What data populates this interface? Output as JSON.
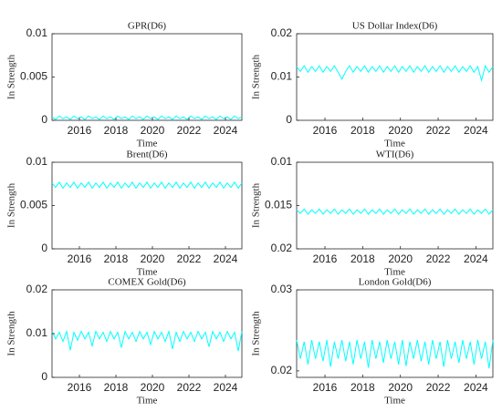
{
  "chart_data": [
    {
      "type": "line",
      "title": "GPR(D6)",
      "x_label": "Time",
      "y_label": "In Strength",
      "xlim": [
        2014.5,
        2024.9
      ],
      "xticks": [
        2016,
        2018,
        2020,
        2022,
        2024
      ],
      "ylim": [
        0,
        0.01
      ],
      "yticks": [
        0,
        0.005,
        0.01
      ],
      "series": [
        {
          "name": "GPR(D6)",
          "color": "#00ffff",
          "x": [
            2014.5,
            2014.7,
            2014.9,
            2015.1,
            2015.3,
            2015.5,
            2015.7,
            2015.9,
            2016.1,
            2016.3,
            2016.5,
            2016.7,
            2016.9,
            2017.1,
            2017.3,
            2017.5,
            2017.7,
            2017.9,
            2018.1,
            2018.3,
            2018.5,
            2018.7,
            2018.9,
            2019.1,
            2019.3,
            2019.5,
            2019.7,
            2019.9,
            2020.1,
            2020.3,
            2020.5,
            2020.7,
            2020.9,
            2021.1,
            2021.3,
            2021.5,
            2021.7,
            2021.9,
            2022.1,
            2022.3,
            2022.5,
            2022.7,
            2022.9,
            2023.1,
            2023.3,
            2023.5,
            2023.7,
            2023.9,
            2024.1,
            2024.3,
            2024.5,
            2024.7,
            2024.9
          ],
          "values": [
            0.0004,
            0.0001,
            0.0005,
            0.0002,
            0.0004,
            0.0001,
            0.0005,
            0.0002,
            0.0004,
            0.0001,
            0.0005,
            0.0002,
            0.0004,
            0.0001,
            0.0005,
            0.0002,
            0.0004,
            0.0001,
            0.0005,
            0.0002,
            0.0004,
            0.0001,
            0.0005,
            0.0002,
            0.0004,
            0.0001,
            0.0005,
            0.0002,
            0.0004,
            0.0001,
            0.0005,
            0.0002,
            0.0004,
            0.0001,
            0.0005,
            0.0002,
            0.0004,
            0.0001,
            0.0005,
            0.0002,
            0.0004,
            0.0001,
            0.0005,
            0.0002,
            0.0004,
            0.0001,
            0.0005,
            0.0002,
            0.0004,
            0.0001,
            0.0005,
            0.0002,
            0.0004
          ]
        }
      ]
    },
    {
      "type": "line",
      "title": "US Dollar Index(D6)",
      "x_label": "Time",
      "y_label": "In Strength",
      "xlim": [
        2014.5,
        2024.9
      ],
      "xticks": [
        2016,
        2018,
        2020,
        2022,
        2024
      ],
      "ylim": [
        0,
        0.02
      ],
      "yticks": [
        0,
        0.01,
        0.02
      ],
      "series": [
        {
          "name": "US Dollar Index(D6)",
          "color": "#00ffff",
          "x": [
            2014.5,
            2014.7,
            2014.9,
            2015.1,
            2015.3,
            2015.5,
            2015.7,
            2015.9,
            2016.1,
            2016.3,
            2016.5,
            2016.7,
            2016.9,
            2017.1,
            2017.3,
            2017.5,
            2017.7,
            2017.9,
            2018.1,
            2018.3,
            2018.5,
            2018.7,
            2018.9,
            2019.1,
            2019.3,
            2019.5,
            2019.7,
            2019.9,
            2020.1,
            2020.3,
            2020.5,
            2020.7,
            2020.9,
            2021.1,
            2021.3,
            2021.5,
            2021.7,
            2021.9,
            2022.1,
            2022.3,
            2022.5,
            2022.7,
            2022.9,
            2023.1,
            2023.3,
            2023.5,
            2023.7,
            2023.9,
            2024.1,
            2024.3,
            2024.5,
            2024.7,
            2024.9
          ],
          "values": [
            0.0124,
            0.0113,
            0.0126,
            0.0111,
            0.0124,
            0.0113,
            0.0126,
            0.0111,
            0.0124,
            0.0113,
            0.0126,
            0.0111,
            0.0095,
            0.0113,
            0.0126,
            0.0111,
            0.0124,
            0.0113,
            0.0126,
            0.0111,
            0.0124,
            0.0113,
            0.0126,
            0.0111,
            0.0124,
            0.0113,
            0.0126,
            0.0111,
            0.0124,
            0.0113,
            0.0126,
            0.0111,
            0.0124,
            0.0113,
            0.0126,
            0.0111,
            0.0124,
            0.0113,
            0.0126,
            0.0111,
            0.0124,
            0.0113,
            0.0126,
            0.0111,
            0.0124,
            0.0113,
            0.0126,
            0.0111,
            0.0124,
            0.0092,
            0.0126,
            0.0111,
            0.0124
          ]
        }
      ]
    },
    {
      "type": "line",
      "title": "Brent(D6)",
      "x_label": "Time",
      "y_label": "In Strength",
      "xlim": [
        2014.5,
        2024.9
      ],
      "xticks": [
        2016,
        2018,
        2020,
        2022,
        2024
      ],
      "ylim": [
        0,
        0.01
      ],
      "yticks": [
        0,
        0.005,
        0.01
      ],
      "series": [
        {
          "name": "Brent(D6)",
          "color": "#00ffff",
          "x": [
            2014.5,
            2014.7,
            2014.9,
            2015.1,
            2015.3,
            2015.5,
            2015.7,
            2015.9,
            2016.1,
            2016.3,
            2016.5,
            2016.7,
            2016.9,
            2017.1,
            2017.3,
            2017.5,
            2017.7,
            2017.9,
            2018.1,
            2018.3,
            2018.5,
            2018.7,
            2018.9,
            2019.1,
            2019.3,
            2019.5,
            2019.7,
            2019.9,
            2020.1,
            2020.3,
            2020.5,
            2020.7,
            2020.9,
            2021.1,
            2021.3,
            2021.5,
            2021.7,
            2021.9,
            2022.1,
            2022.3,
            2022.5,
            2022.7,
            2022.9,
            2023.1,
            2023.3,
            2023.5,
            2023.7,
            2023.9,
            2024.1,
            2024.3,
            2024.5,
            2024.7,
            2024.9
          ],
          "values": [
            0.0076,
            0.0071,
            0.0077,
            0.007,
            0.0076,
            0.0071,
            0.0077,
            0.007,
            0.0076,
            0.0071,
            0.0077,
            0.007,
            0.0076,
            0.0071,
            0.0077,
            0.007,
            0.0076,
            0.0071,
            0.0077,
            0.007,
            0.0076,
            0.0071,
            0.0077,
            0.007,
            0.0076,
            0.0071,
            0.0077,
            0.007,
            0.0076,
            0.0071,
            0.0077,
            0.007,
            0.0076,
            0.0071,
            0.0077,
            0.007,
            0.0076,
            0.0071,
            0.0077,
            0.007,
            0.0076,
            0.0071,
            0.0077,
            0.007,
            0.0076,
            0.0071,
            0.0077,
            0.007,
            0.0076,
            0.0071,
            0.0077,
            0.007,
            0.0076
          ]
        }
      ]
    },
    {
      "type": "line",
      "title": "WTI(D6)",
      "x_label": "Time",
      "y_label": "In Strength",
      "xlim": [
        2014.5,
        2024.9
      ],
      "xticks": [
        2016,
        2018,
        2020,
        2022,
        2024
      ],
      "ylim": [
        0.02,
        0.01
      ],
      "yticks": [
        0.02,
        0.015,
        0.01
      ],
      "series": [
        {
          "name": "WTI(D6)",
          "color": "#00ffff",
          "x": [
            2014.5,
            2014.7,
            2014.9,
            2015.1,
            2015.3,
            2015.5,
            2015.7,
            2015.9,
            2016.1,
            2016.3,
            2016.5,
            2016.7,
            2016.9,
            2017.1,
            2017.3,
            2017.5,
            2017.7,
            2017.9,
            2018.1,
            2018.3,
            2018.5,
            2018.7,
            2018.9,
            2019.1,
            2019.3,
            2019.5,
            2019.7,
            2019.9,
            2020.1,
            2020.3,
            2020.5,
            2020.7,
            2020.9,
            2021.1,
            2021.3,
            2021.5,
            2021.7,
            2021.9,
            2022.1,
            2022.3,
            2022.5,
            2022.7,
            2022.9,
            2023.1,
            2023.3,
            2023.5,
            2023.7,
            2023.9,
            2024.1,
            2024.3,
            2024.5,
            2024.7,
            2024.9
          ],
          "values": [
            0.0155,
            0.0159,
            0.0154,
            0.016,
            0.0155,
            0.0159,
            0.0154,
            0.016,
            0.0155,
            0.0159,
            0.0154,
            0.016,
            0.0155,
            0.0159,
            0.0154,
            0.016,
            0.0155,
            0.0159,
            0.0154,
            0.016,
            0.0155,
            0.0159,
            0.0154,
            0.016,
            0.0155,
            0.0159,
            0.0154,
            0.016,
            0.0155,
            0.0159,
            0.0154,
            0.016,
            0.0155,
            0.0159,
            0.0154,
            0.016,
            0.0155,
            0.0159,
            0.0154,
            0.016,
            0.0155,
            0.0159,
            0.0154,
            0.016,
            0.0155,
            0.0159,
            0.0154,
            0.016,
            0.0155,
            0.0159,
            0.0154,
            0.016,
            0.0155
          ]
        }
      ]
    },
    {
      "type": "line",
      "title": "COMEX Gold(D6)",
      "x_label": "Time",
      "y_label": "In Strength",
      "xlim": [
        2014.5,
        2024.9
      ],
      "xticks": [
        2016,
        2018,
        2020,
        2022,
        2024
      ],
      "ylim": [
        0,
        0.02
      ],
      "yticks": [
        0,
        0.01,
        0.02
      ],
      "series": [
        {
          "name": "COMEX Gold(D6)",
          "color": "#00ffff",
          "x": [
            2014.5,
            2014.7,
            2014.9,
            2015.1,
            2015.3,
            2015.5,
            2015.7,
            2015.9,
            2016.1,
            2016.3,
            2016.5,
            2016.7,
            2016.9,
            2017.1,
            2017.3,
            2017.5,
            2017.7,
            2017.9,
            2018.1,
            2018.3,
            2018.5,
            2018.7,
            2018.9,
            2019.1,
            2019.3,
            2019.5,
            2019.7,
            2019.9,
            2020.1,
            2020.3,
            2020.5,
            2020.7,
            2020.9,
            2021.1,
            2021.3,
            2021.5,
            2021.7,
            2021.9,
            2022.1,
            2022.3,
            2022.5,
            2022.7,
            2022.9,
            2023.1,
            2023.3,
            2023.5,
            2023.7,
            2023.9,
            2024.1,
            2024.3,
            2024.5,
            2024.7,
            2024.9
          ],
          "values": [
            0.0105,
            0.0088,
            0.0103,
            0.0082,
            0.0105,
            0.0062,
            0.0103,
            0.0085,
            0.0105,
            0.0088,
            0.0103,
            0.0072,
            0.0105,
            0.0088,
            0.0103,
            0.0082,
            0.0105,
            0.0088,
            0.0103,
            0.0068,
            0.0105,
            0.0088,
            0.0103,
            0.0082,
            0.0105,
            0.0088,
            0.0103,
            0.0075,
            0.0105,
            0.0088,
            0.0103,
            0.0082,
            0.0105,
            0.0065,
            0.0103,
            0.0082,
            0.0105,
            0.0088,
            0.0103,
            0.0082,
            0.0105,
            0.0088,
            0.0103,
            0.007,
            0.0105,
            0.0088,
            0.0103,
            0.0082,
            0.0105,
            0.0088,
            0.0103,
            0.006,
            0.0105
          ]
        }
      ]
    },
    {
      "type": "line",
      "title": "London Gold(D6)",
      "x_label": "Time",
      "y_label": "In Strength",
      "xlim": [
        2014.5,
        2024.9
      ],
      "xticks": [
        2016,
        2018,
        2020,
        2022,
        2024
      ],
      "ylim": [
        0.0192,
        0.03
      ],
      "yticks": [
        0.02,
        0.03
      ],
      "series": [
        {
          "name": "London Gold(D6)",
          "color": "#00ffff",
          "x": [
            2014.5,
            2014.7,
            2014.9,
            2015.1,
            2015.3,
            2015.5,
            2015.7,
            2015.9,
            2016.1,
            2016.3,
            2016.5,
            2016.7,
            2016.9,
            2017.1,
            2017.3,
            2017.5,
            2017.7,
            2017.9,
            2018.1,
            2018.3,
            2018.5,
            2018.7,
            2018.9,
            2019.1,
            2019.3,
            2019.5,
            2019.7,
            2019.9,
            2020.1,
            2020.3,
            2020.5,
            2020.7,
            2020.9,
            2021.1,
            2021.3,
            2021.5,
            2021.7,
            2021.9,
            2022.1,
            2022.3,
            2022.5,
            2022.7,
            2022.9,
            2023.1,
            2023.3,
            2023.5,
            2023.7,
            2023.9,
            2024.1,
            2024.3,
            2024.5,
            2024.7,
            2024.9
          ],
          "values": [
            0.0238,
            0.0215,
            0.0236,
            0.0208,
            0.0238,
            0.0215,
            0.0236,
            0.0212,
            0.0238,
            0.0205,
            0.0236,
            0.0215,
            0.0238,
            0.0212,
            0.0236,
            0.0208,
            0.0238,
            0.0215,
            0.0236,
            0.0204,
            0.0238,
            0.0215,
            0.0236,
            0.021,
            0.0238,
            0.0215,
            0.0236,
            0.0208,
            0.0238,
            0.0206,
            0.0236,
            0.0215,
            0.0238,
            0.0212,
            0.0236,
            0.0208,
            0.0238,
            0.0215,
            0.0236,
            0.0205,
            0.0238,
            0.0215,
            0.0236,
            0.021,
            0.0238,
            0.0215,
            0.0236,
            0.0208,
            0.0238,
            0.0215,
            0.0236,
            0.0203,
            0.0238
          ]
        }
      ]
    }
  ]
}
